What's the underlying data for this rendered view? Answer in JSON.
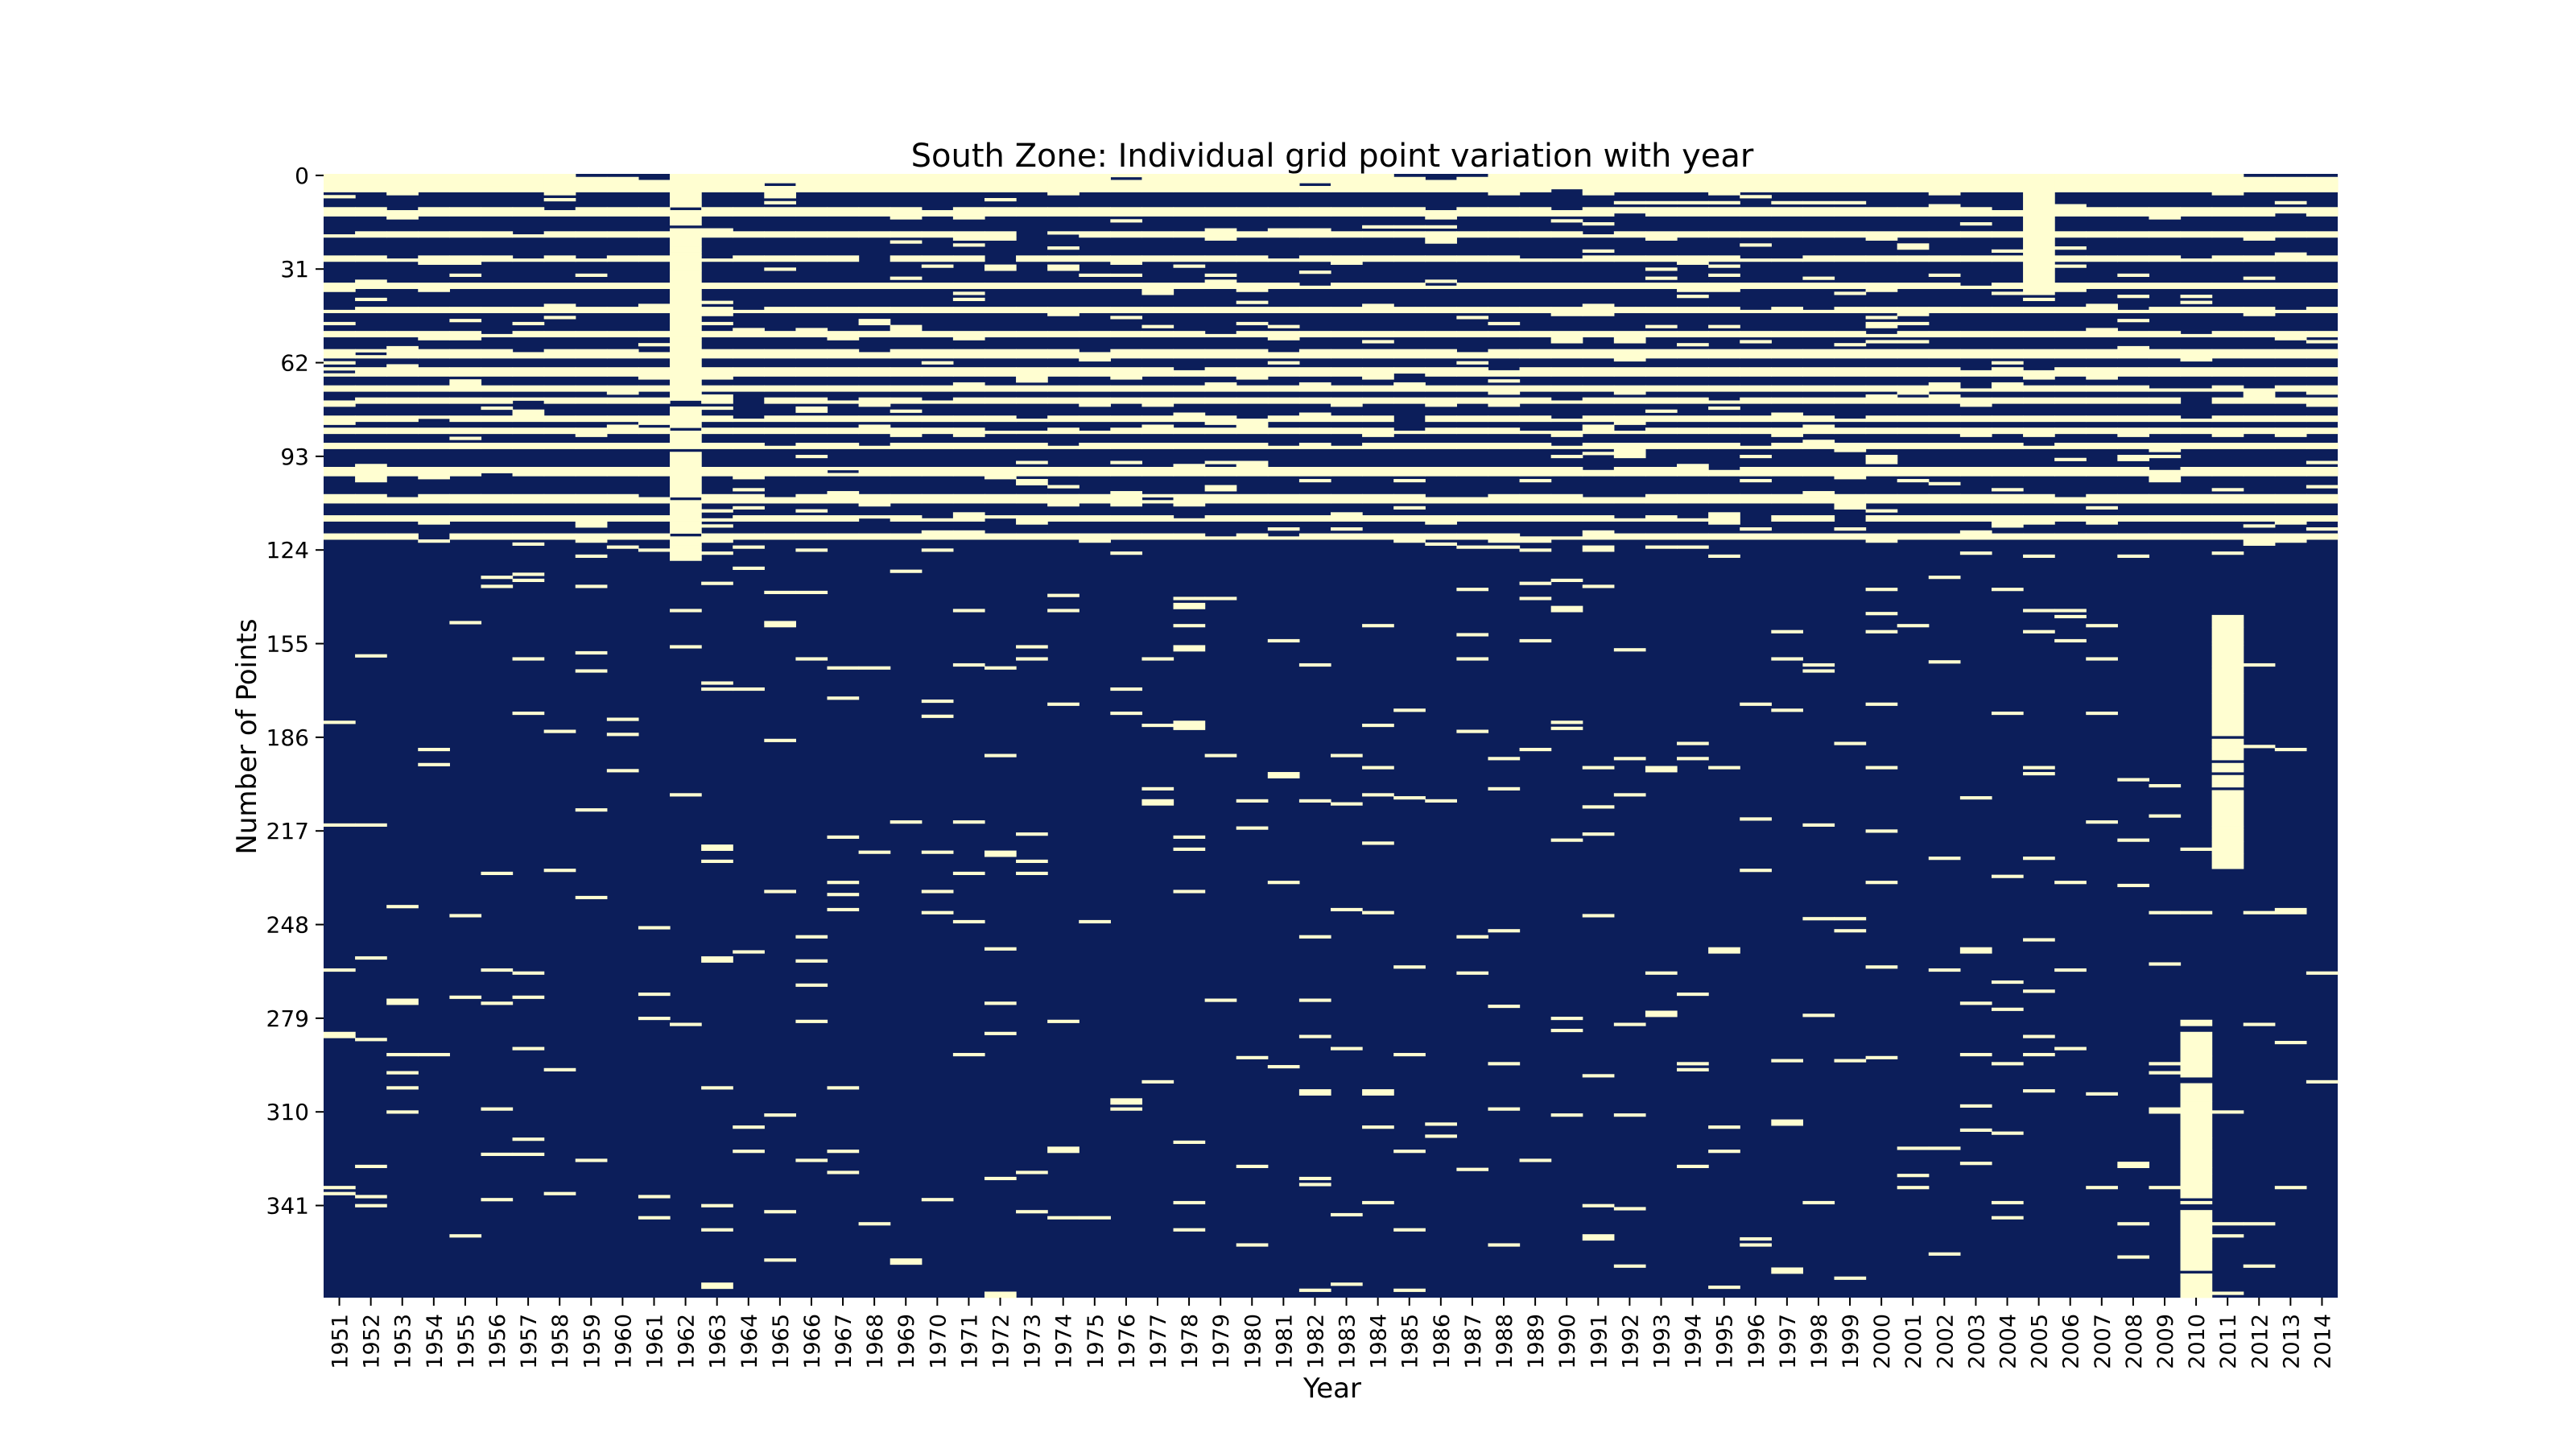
{
  "chart_data": {
    "type": "heatmap",
    "title": "South Zone: Individual grid point variation with year",
    "xlabel": "Year",
    "ylabel": "Number of Points",
    "years": [
      "1951",
      "1952",
      "1953",
      "1954",
      "1955",
      "1956",
      "1957",
      "1958",
      "1959",
      "1960",
      "1961",
      "1962",
      "1963",
      "1964",
      "1965",
      "1966",
      "1967",
      "1968",
      "1969",
      "1970",
      "1971",
      "1972",
      "1973",
      "1974",
      "1975",
      "1976",
      "1977",
      "1978",
      "1979",
      "1980",
      "1981",
      "1982",
      "1983",
      "1984",
      "1985",
      "1986",
      "1987",
      "1988",
      "1989",
      "1990",
      "1991",
      "1992",
      "1993",
      "1994",
      "1995",
      "1996",
      "1997",
      "1998",
      "1999",
      "2000",
      "2001",
      "2002",
      "2003",
      "2004",
      "2005",
      "2006",
      "2007",
      "2008",
      "2009",
      "2010",
      "2011",
      "2012",
      "2013",
      "2014"
    ],
    "y_ticks": [
      "0",
      "31",
      "62",
      "93",
      "124",
      "155",
      "186",
      "217",
      "248",
      "279",
      "310",
      "341"
    ],
    "n_points": 372,
    "value_range": [
      0,
      1
    ],
    "colors": {
      "low": "#fffed1",
      "high": "#0c1e5a"
    },
    "grid": false,
    "colorbar": false,
    "upper_band_rows": 127,
    "light_band_rows": [
      0,
      1,
      2,
      3,
      4,
      5,
      11,
      12,
      13,
      19,
      20,
      27,
      28,
      36,
      37,
      44,
      45,
      52,
      53,
      58,
      59,
      60,
      64,
      65,
      66,
      70,
      71,
      74,
      75,
      80,
      81,
      84,
      85,
      89,
      90,
      97,
      98,
      99,
      106,
      107,
      108,
      113,
      114,
      119,
      120
    ],
    "notable_year_profiles": {
      "1962": "mostly light through the upper band (rows 0-127), scattered light rows below",
      "2005": "light column across rows 0-40, scattered light blocks 140-290",
      "2010": "long light run roughly rows 283-372",
      "2011": "light run roughly rows 145-230"
    }
  }
}
